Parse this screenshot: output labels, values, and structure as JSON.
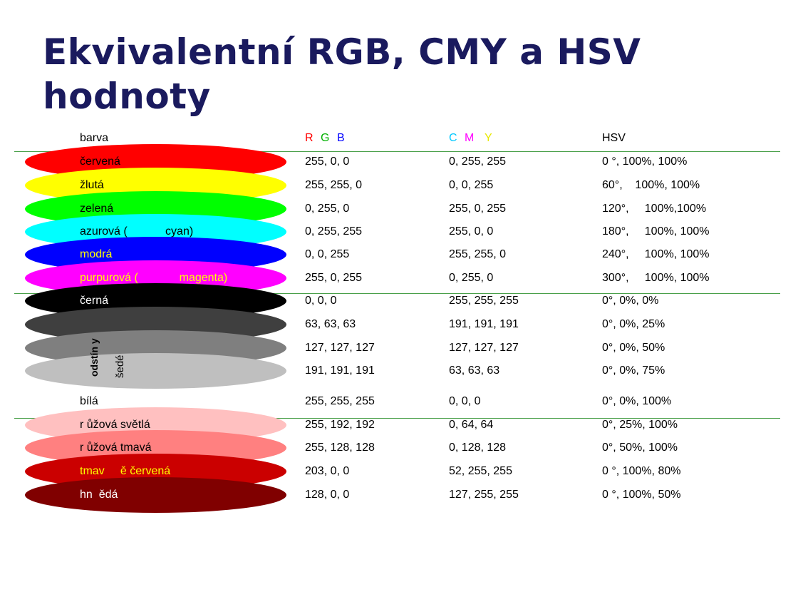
{
  "title_line1": "Ekvivalentní RGB, CMY a HSV",
  "title_line2": "hodnoty",
  "header": {
    "barva": "barva",
    "r": "R",
    "g": "G",
    "b": "B",
    "c": "C",
    "m": "M",
    "y": "Y",
    "hsv": "HSV"
  },
  "header_colors": {
    "r": "#ff0000",
    "g": "#00b000",
    "b": "#0000ff",
    "c": "#00c8ff",
    "m": "#ff00ff",
    "y": "#e8e800"
  },
  "rows": [
    {
      "name": "červená",
      "name_color": "#000000",
      "swatch": "#ff0000",
      "rgb": "255, 0, 0",
      "cmy": "0, 255, 255",
      "hsv": "0 °, 100%, 100%"
    },
    {
      "name": "žlutá",
      "name_color": "#000000",
      "swatch": "#ffff00",
      "rgb": "255, 255, 0",
      "cmy": "0, 0, 255",
      "hsv": "60°,    100%, 100%"
    },
    {
      "name": "zelená",
      "name_color": "#000000",
      "swatch": "#00ff00",
      "rgb": "0, 255, 0",
      "cmy": "255, 0, 255",
      "hsv": "120°,     100%,100%"
    },
    {
      "name": "azurová (            cyan)",
      "name_color": "#000000",
      "swatch": "#00ffff",
      "rgb": "0, 255, 255",
      "cmy": "255, 0, 0",
      "hsv": "180°,     100%, 100%"
    },
    {
      "name": "modrá",
      "name_color": "#ffff00",
      "swatch": "#0000ff",
      "rgb": "0, 0, 255",
      "cmy": "255, 255, 0",
      "hsv": "240°,     100%, 100%"
    },
    {
      "name": "purpurová (             magenta)",
      "name_color": "#ffff00",
      "swatch": "#ff00ff",
      "rgb": "255, 0, 255",
      "cmy": "0, 255, 0",
      "hsv": "300°,     100%, 100%"
    },
    {
      "name": "černá",
      "name_color": "#ffffff",
      "swatch": "#000000",
      "rgb": "0, 0, 0",
      "cmy": "255, 255, 255",
      "hsv": "0°, 0%, 0%"
    },
    {
      "name": "",
      "name_color": "#000000",
      "swatch": "#3f3f3f",
      "rgb": "63, 63, 63",
      "cmy": "191, 191, 191",
      "hsv": "0°, 0%, 25%"
    },
    {
      "name": "",
      "name_color": "#000000",
      "swatch": "#7f7f7f",
      "rgb": "127, 127, 127",
      "cmy": "127, 127, 127",
      "hsv": "0°, 0%, 50%"
    },
    {
      "name": "",
      "name_color": "#000000",
      "swatch": "#bfbfbf",
      "rgb": "191, 191, 191",
      "cmy": "63, 63, 63",
      "hsv": "0°, 0%, 75%"
    },
    {
      "name": "bílá",
      "name_color": "#000000",
      "swatch": "#ffffff",
      "rgb": "255, 255, 255",
      "cmy": "0, 0, 0",
      "hsv": "0°, 0%, 100%"
    },
    {
      "name": "r ůžová světlá",
      "name_color": "#000000",
      "swatch": "#ffc0c0",
      "rgb": "255, 192, 192",
      "cmy": "0, 64, 64",
      "hsv": "0°, 25%, 100%"
    },
    {
      "name": "r ůžová tmavá",
      "name_color": "#000000",
      "swatch": "#ff8080",
      "rgb": "255, 128, 128",
      "cmy": "0, 128, 128",
      "hsv": "0°, 50%, 100%"
    },
    {
      "name": "tmav     ě červená",
      "name_color": "#ffff00",
      "swatch": "#cb0000",
      "rgb": "203, 0, 0",
      "cmy": "52, 255, 255",
      "hsv": "0 °, 100%, 80%"
    },
    {
      "name": "hn  ědá",
      "name_color": "#ffffff",
      "swatch": "#800000",
      "rgb": "128, 0, 0",
      "cmy": "127, 255, 255",
      "hsv": "0 °, 100%, 50%"
    }
  ],
  "gray_label_1": "odstín y",
  "gray_label_2": "šedé"
}
